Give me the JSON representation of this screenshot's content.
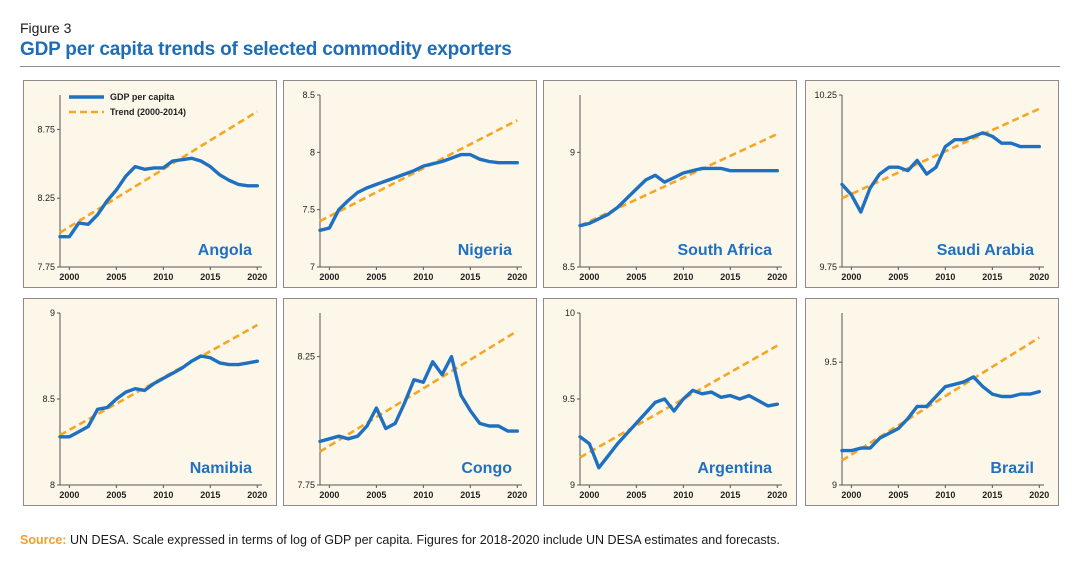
{
  "figure_label": "Figure 3",
  "title": "GDP per capita trends of selected commodity exporters",
  "source": {
    "label": "Source:",
    "text": "UN DESA. Scale expressed in terms of log of GDP per capita. Figures for 2018-2020 include UN DESA estimates and forecasts."
  },
  "colors": {
    "series": "#1f70c1",
    "trend": "#f5a623",
    "title": "#1f6db5",
    "panel_bg": "#fdf7ea"
  },
  "chart_data": [
    {
      "type": "line",
      "name": "Angola",
      "legend": [
        {
          "label": "GDP per capita",
          "series": "gdp"
        },
        {
          "label": "Trend (2000-2014)",
          "series": "trend"
        }
      ],
      "xlim": [
        1999,
        2020.5
      ],
      "ylim": [
        7.75,
        9.0
      ],
      "xticks": [
        2000,
        2005,
        2010,
        2015,
        2020
      ],
      "xtick_labels": [
        "2000",
        "2005",
        "2010",
        "2015",
        "2020"
      ],
      "yticks": [
        7.75,
        8.25,
        8.75
      ],
      "ytick_labels": [
        "7.75",
        "8.25",
        "8.75"
      ],
      "x": [
        1999,
        2000,
        2001,
        2002,
        2003,
        2004,
        2005,
        2006,
        2007,
        2008,
        2009,
        2010,
        2011,
        2012,
        2013,
        2014,
        2015,
        2016,
        2017,
        2018,
        2019,
        2020
      ],
      "gdp": [
        7.97,
        7.97,
        8.07,
        8.06,
        8.13,
        8.23,
        8.31,
        8.41,
        8.48,
        8.46,
        8.47,
        8.47,
        8.52,
        8.53,
        8.54,
        8.52,
        8.48,
        8.42,
        8.38,
        8.35,
        8.34,
        8.34
      ],
      "trend": {
        "x": [
          1999,
          2020
        ],
        "y": [
          8.0,
          8.88
        ]
      }
    },
    {
      "type": "line",
      "name": "Nigeria",
      "xlim": [
        1999,
        2020.5
      ],
      "ylim": [
        7.0,
        8.5
      ],
      "xticks": [
        2000,
        2005,
        2010,
        2015,
        2020
      ],
      "xtick_labels": [
        "2000",
        "2005",
        "2010",
        "2015",
        "2020"
      ],
      "yticks": [
        7.0,
        7.5,
        8.0,
        8.5
      ],
      "ytick_labels": [
        "7",
        "7.5",
        "8",
        "8.5"
      ],
      "x": [
        1999,
        2000,
        2001,
        2002,
        2003,
        2004,
        2005,
        2006,
        2007,
        2008,
        2009,
        2010,
        2011,
        2012,
        2013,
        2014,
        2015,
        2016,
        2017,
        2018,
        2019,
        2020
      ],
      "gdp": [
        7.32,
        7.34,
        7.5,
        7.58,
        7.65,
        7.69,
        7.72,
        7.75,
        7.78,
        7.81,
        7.84,
        7.88,
        7.9,
        7.92,
        7.95,
        7.98,
        7.98,
        7.94,
        7.92,
        7.91,
        7.91,
        7.91
      ],
      "trend": {
        "x": [
          1999,
          2020
        ],
        "y": [
          7.4,
          8.28
        ]
      }
    },
    {
      "type": "line",
      "name": "South Africa",
      "xlim": [
        1999,
        2020.5
      ],
      "ylim": [
        8.5,
        9.25
      ],
      "xticks": [
        2000,
        2005,
        2010,
        2015,
        2020
      ],
      "xtick_labels": [
        "2000",
        "2005",
        "2010",
        "2015",
        "2020"
      ],
      "yticks": [
        8.5,
        9.0
      ],
      "ytick_labels": [
        "8.5",
        "9"
      ],
      "x": [
        1999,
        2000,
        2001,
        2002,
        2003,
        2004,
        2005,
        2006,
        2007,
        2008,
        2009,
        2010,
        2011,
        2012,
        2013,
        2014,
        2015,
        2016,
        2017,
        2018,
        2019,
        2020
      ],
      "gdp": [
        8.68,
        8.69,
        8.71,
        8.73,
        8.76,
        8.8,
        8.84,
        8.88,
        8.9,
        8.87,
        8.89,
        8.91,
        8.92,
        8.93,
        8.93,
        8.93,
        8.92,
        8.92,
        8.92,
        8.92,
        8.92,
        8.92
      ],
      "trend": {
        "x": [
          1999,
          2020
        ],
        "y": [
          8.68,
          9.08
        ]
      }
    },
    {
      "type": "line",
      "name": "Saudi Arabia",
      "xlim": [
        1999,
        2020.5
      ],
      "ylim": [
        9.75,
        10.25
      ],
      "xticks": [
        2000,
        2005,
        2010,
        2015,
        2020
      ],
      "xtick_labels": [
        "2000",
        "2005",
        "2010",
        "2015",
        "2020"
      ],
      "yticks": [
        9.75,
        10.25
      ],
      "ytick_labels": [
        "9.75",
        "10.25"
      ],
      "x": [
        1999,
        2000,
        2001,
        2002,
        2003,
        2004,
        2005,
        2006,
        2007,
        2008,
        2009,
        2010,
        2011,
        2012,
        2013,
        2014,
        2015,
        2016,
        2017,
        2018,
        2019,
        2020
      ],
      "gdp": [
        9.99,
        9.96,
        9.91,
        9.98,
        10.02,
        10.04,
        10.04,
        10.03,
        10.06,
        10.02,
        10.04,
        10.1,
        10.12,
        10.12,
        10.13,
        10.14,
        10.13,
        10.11,
        10.11,
        10.1,
        10.1,
        10.1
      ],
      "trend": {
        "x": [
          1999,
          2020
        ],
        "y": [
          9.95,
          10.21
        ]
      }
    },
    {
      "type": "line",
      "name": "Namibia",
      "xlim": [
        1999,
        2020.5
      ],
      "ylim": [
        8.0,
        9.0
      ],
      "xticks": [
        2000,
        2005,
        2010,
        2015,
        2020
      ],
      "xtick_labels": [
        "2000",
        "2005",
        "2010",
        "2015",
        "2020"
      ],
      "yticks": [
        8.0,
        8.5,
        9.0
      ],
      "ytick_labels": [
        "8",
        "8.5",
        "9"
      ],
      "x": [
        1999,
        2000,
        2001,
        2002,
        2003,
        2004,
        2005,
        2006,
        2007,
        2008,
        2009,
        2010,
        2011,
        2012,
        2013,
        2014,
        2015,
        2016,
        2017,
        2018,
        2019,
        2020
      ],
      "gdp": [
        8.28,
        8.28,
        8.31,
        8.34,
        8.44,
        8.45,
        8.5,
        8.54,
        8.56,
        8.55,
        8.59,
        8.62,
        8.65,
        8.68,
        8.72,
        8.75,
        8.74,
        8.71,
        8.7,
        8.7,
        8.71,
        8.72
      ],
      "trend": {
        "x": [
          1999,
          2020
        ],
        "y": [
          8.29,
          8.93
        ]
      }
    },
    {
      "type": "line",
      "name": "Congo",
      "xlim": [
        1999,
        2020.5
      ],
      "ylim": [
        7.75,
        8.42
      ],
      "xticks": [
        2000,
        2005,
        2010,
        2015,
        2020
      ],
      "xtick_labels": [
        "2000",
        "2005",
        "2010",
        "2015",
        "2020"
      ],
      "yticks": [
        7.75,
        8.25
      ],
      "ytick_labels": [
        "7.75",
        "8.25"
      ],
      "x": [
        1999,
        2000,
        2001,
        2002,
        2003,
        2004,
        2005,
        2006,
        2007,
        2008,
        2009,
        2010,
        2011,
        2012,
        2013,
        2014,
        2015,
        2016,
        2017,
        2018,
        2019,
        2020
      ],
      "gdp": [
        7.92,
        7.93,
        7.94,
        7.93,
        7.94,
        7.98,
        8.05,
        7.97,
        7.99,
        8.07,
        8.16,
        8.15,
        8.23,
        8.18,
        8.25,
        8.1,
        8.04,
        7.99,
        7.98,
        7.98,
        7.96,
        7.96
      ],
      "trend": {
        "x": [
          1999,
          2020
        ],
        "y": [
          7.88,
          8.35
        ]
      }
    },
    {
      "type": "line",
      "name": "Argentina",
      "xlim": [
        1999,
        2020.5
      ],
      "ylim": [
        9.0,
        10.0
      ],
      "xticks": [
        2000,
        2005,
        2010,
        2015,
        2020
      ],
      "xtick_labels": [
        "2000",
        "2005",
        "2010",
        "2015",
        "2020"
      ],
      "yticks": [
        9.0,
        9.5,
        10.0
      ],
      "ytick_labels": [
        "9",
        "9.5",
        "10"
      ],
      "x": [
        1999,
        2000,
        2001,
        2002,
        2003,
        2004,
        2005,
        2006,
        2007,
        2008,
        2009,
        2010,
        2011,
        2012,
        2013,
        2014,
        2015,
        2016,
        2017,
        2018,
        2019,
        2020
      ],
      "gdp": [
        9.28,
        9.24,
        9.1,
        9.17,
        9.24,
        9.3,
        9.36,
        9.42,
        9.48,
        9.5,
        9.43,
        9.5,
        9.55,
        9.53,
        9.54,
        9.51,
        9.52,
        9.5,
        9.52,
        9.49,
        9.46,
        9.47
      ],
      "trend": {
        "x": [
          1999,
          2020
        ],
        "y": [
          9.16,
          9.81
        ]
      }
    },
    {
      "type": "line",
      "name": "Brazil",
      "xlim": [
        1999,
        2020.5
      ],
      "ylim": [
        9.0,
        9.7
      ],
      "xticks": [
        2000,
        2005,
        2010,
        2015,
        2020
      ],
      "xtick_labels": [
        "2000",
        "2005",
        "2010",
        "2015",
        "2020"
      ],
      "yticks": [
        9.0,
        9.5
      ],
      "ytick_labels": [
        "9",
        "9.5"
      ],
      "x": [
        1999,
        2000,
        2001,
        2002,
        2003,
        2004,
        2005,
        2006,
        2007,
        2008,
        2009,
        2010,
        2011,
        2012,
        2013,
        2014,
        2015,
        2016,
        2017,
        2018,
        2019,
        2020
      ],
      "gdp": [
        9.14,
        9.14,
        9.15,
        9.15,
        9.19,
        9.21,
        9.23,
        9.27,
        9.32,
        9.32,
        9.36,
        9.4,
        9.41,
        9.42,
        9.44,
        9.4,
        9.37,
        9.36,
        9.36,
        9.37,
        9.37,
        9.38
      ],
      "trend": {
        "x": [
          1999,
          2020
        ],
        "y": [
          9.1,
          9.6
        ]
      }
    }
  ]
}
